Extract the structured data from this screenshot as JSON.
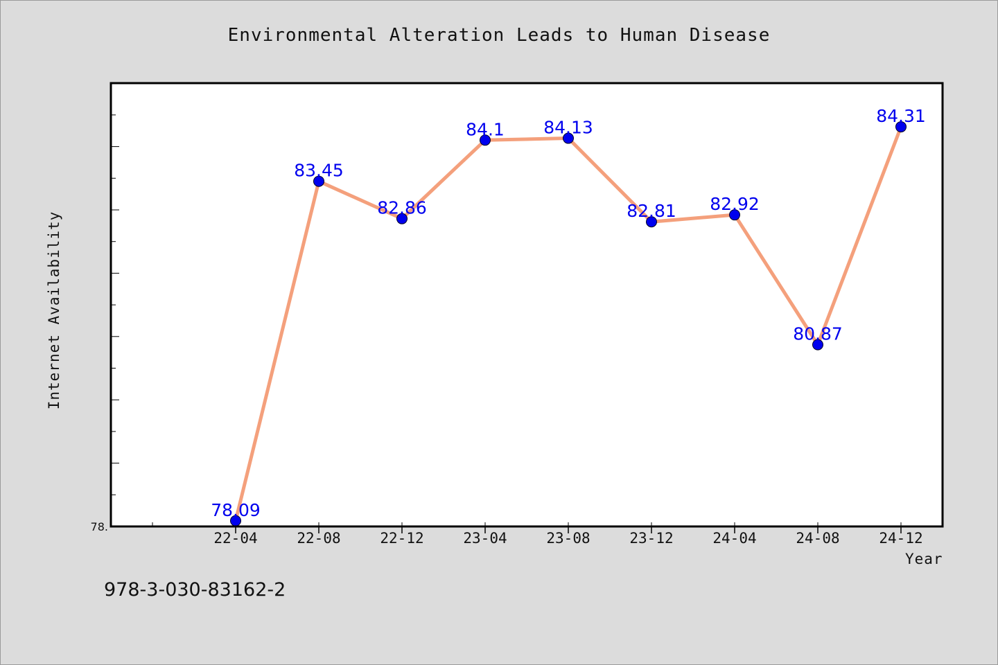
{
  "chart_data": {
    "type": "line",
    "title": "Environmental Alteration Leads to Human Disease",
    "xlabel": "Year",
    "ylabel": "Internet Availability",
    "categories": [
      "22-04",
      "22-08",
      "22-12",
      "23-04",
      "23-08",
      "23-12",
      "24-04",
      "24-08",
      "24-12"
    ],
    "series": [
      {
        "values": [
          78.09,
          83.45,
          82.86,
          84.1,
          84.13,
          82.81,
          82.92,
          80.87,
          84.31
        ],
        "labels": [
          "78.09",
          "83.45",
          "82.86",
          "84.1",
          "84.13",
          "82.81",
          "82.92",
          "80.87",
          "84.31"
        ],
        "line_color": "#f4a07c",
        "marker_color": "#0000ee",
        "label_color": "#0000ee"
      }
    ],
    "ylim": [
      78.0,
      85.0
    ],
    "y_tick_labels": [
      "78."
    ],
    "grid": false,
    "legend": "none"
  },
  "footer_text": "978-3-030-83162-2",
  "colors": {
    "background": "#dcdcdc",
    "plot_background": "#ffffff",
    "axis": "#000000"
  }
}
